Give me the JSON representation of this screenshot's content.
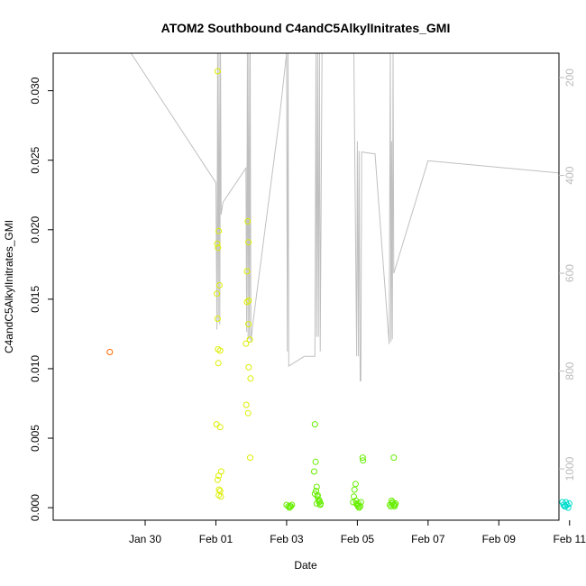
{
  "chart_data": {
    "type": "scatter",
    "title": "ATOM2 Southbound C4andC5AlkylInitrates_GMI",
    "xlabel": "Date",
    "ylabel": "C4andC5AlkylInitrates_GMI",
    "xlim": [
      -2.6,
      11.7
    ],
    "ylim": [
      -0.0009,
      0.0327
    ],
    "y2lim": [
      1105,
      150
    ],
    "x_ticks": [
      {
        "value": 0,
        "label": "Jan 30"
      },
      {
        "value": 2,
        "label": "Feb 01"
      },
      {
        "value": 4,
        "label": "Feb 03"
      },
      {
        "value": 6,
        "label": "Feb 05"
      },
      {
        "value": 8,
        "label": "Feb 07"
      },
      {
        "value": 10,
        "label": "Feb 09"
      },
      {
        "value": 12,
        "label": "Feb 11"
      }
    ],
    "y_ticks": [
      {
        "value": 0.0,
        "label": "0.000"
      },
      {
        "value": 0.005,
        "label": "0.005"
      },
      {
        "value": 0.01,
        "label": "0.010"
      },
      {
        "value": 0.015,
        "label": "0.015"
      },
      {
        "value": 0.02,
        "label": "0.020"
      },
      {
        "value": 0.025,
        "label": "0.025"
      },
      {
        "value": 0.03,
        "label": "0.030"
      }
    ],
    "y2_ticks": [
      {
        "value": 200,
        "label": "200"
      },
      {
        "value": 400,
        "label": "400"
      },
      {
        "value": 600,
        "label": "600"
      },
      {
        "value": 800,
        "label": "800"
      },
      {
        "value": 1000,
        "label": "1000"
      }
    ],
    "grid": false,
    "legend": "none",
    "colors": {
      "pressure_line": "#c0c0c0",
      "axis": "#000000",
      "right_axis": "#bbbbbb"
    },
    "series": [
      {
        "color": "#ff6600",
        "points": [
          [
            -1.0,
            0.0112
          ]
        ]
      },
      {
        "color": "#ddee00",
        "points": [
          [
            2.05,
            0.0314
          ],
          [
            2.04,
            0.019
          ],
          [
            2.06,
            0.0187
          ],
          [
            2.08,
            0.0199
          ],
          [
            2.03,
            0.0154
          ],
          [
            2.1,
            0.016
          ],
          [
            2.05,
            0.0136
          ],
          [
            2.06,
            0.0114
          ],
          [
            2.12,
            0.0113
          ],
          [
            2.07,
            0.0104
          ],
          [
            2.02,
            0.006
          ],
          [
            2.12,
            0.0058
          ],
          [
            2.15,
            0.0026
          ],
          [
            2.08,
            0.0023
          ],
          [
            2.05,
            0.002
          ],
          [
            2.09,
            0.0013
          ],
          [
            2.12,
            0.0012
          ],
          [
            2.08,
            0.0009
          ],
          [
            2.14,
            0.0008
          ],
          [
            2.9,
            0.0206
          ],
          [
            2.92,
            0.0191
          ],
          [
            2.88,
            0.017
          ],
          [
            2.93,
            0.0149
          ],
          [
            2.88,
            0.0148
          ],
          [
            2.92,
            0.0132
          ],
          [
            2.96,
            0.0121
          ],
          [
            2.85,
            0.0118
          ],
          [
            2.93,
            0.0101
          ],
          [
            2.98,
            0.0093
          ],
          [
            2.86,
            0.0074
          ],
          [
            2.91,
            0.0068
          ],
          [
            2.97,
            0.0036
          ]
        ]
      },
      {
        "color": "#66ee00",
        "points": [
          [
            4.0,
            0.0002
          ],
          [
            4.05,
            0.0001
          ],
          [
            4.1,
            0.0001
          ],
          [
            4.15,
            0.0002
          ],
          [
            4.08,
            0.0
          ],
          [
            4.12,
            0.0001
          ],
          [
            4.8,
            0.006
          ],
          [
            4.82,
            0.0033
          ],
          [
            4.78,
            0.0026
          ],
          [
            4.85,
            0.0015
          ],
          [
            4.83,
            0.0012
          ],
          [
            4.8,
            0.001
          ],
          [
            4.87,
            0.0008
          ],
          [
            4.9,
            0.0006
          ],
          [
            4.92,
            0.0004
          ],
          [
            4.85,
            0.0003
          ],
          [
            4.95,
            0.0002
          ],
          [
            4.93,
            0.0005
          ],
          [
            4.88,
            0.0009
          ],
          [
            4.96,
            0.0003
          ],
          [
            5.95,
            0.0017
          ],
          [
            5.92,
            0.0013
          ],
          [
            5.9,
            0.0008
          ],
          [
            5.88,
            0.0004
          ],
          [
            5.97,
            0.0003
          ],
          [
            6.0,
            0.0002
          ],
          [
            6.02,
            0.0001
          ],
          [
            6.05,
            0.0
          ],
          [
            6.08,
            0.0001
          ],
          [
            6.1,
            0.0004
          ],
          [
            6.15,
            0.0036
          ],
          [
            6.16,
            0.0034
          ],
          [
            5.96,
            0.0005
          ],
          [
            6.03,
            0.0003
          ],
          [
            6.92,
            0.0002
          ],
          [
            6.95,
            0.0001
          ],
          [
            6.98,
            0.0003
          ],
          [
            7.0,
            0.0004
          ],
          [
            7.02,
            0.0002
          ],
          [
            7.05,
            0.0001
          ],
          [
            7.08,
            0.0003
          ],
          [
            7.03,
            0.0036
          ],
          [
            6.97,
            0.0005
          ],
          [
            7.06,
            0.0002
          ]
        ]
      },
      {
        "color": "#00ddcc",
        "points": [
          [
            11.8,
            0.0004
          ],
          [
            11.83,
            0.0002
          ],
          [
            11.86,
            0.0001
          ],
          [
            11.9,
            0.0004
          ],
          [
            11.93,
            0.0002
          ],
          [
            11.96,
            0.0
          ],
          [
            11.88,
            0.0001
          ],
          [
            11.99,
            0.0003
          ]
        ]
      }
    ],
    "pressure_path": [
      [
        -2.3,
        150
      ],
      [
        -0.4,
        150
      ],
      [
        2.0,
        415
      ],
      [
        2.03,
        715
      ],
      [
        2.05,
        150
      ],
      [
        2.07,
        700
      ],
      [
        2.09,
        150
      ],
      [
        2.11,
        705
      ],
      [
        2.13,
        150
      ],
      [
        2.15,
        480
      ],
      [
        2.2,
        455
      ],
      [
        2.85,
        385
      ],
      [
        2.87,
        720
      ],
      [
        2.89,
        150
      ],
      [
        2.91,
        735
      ],
      [
        2.93,
        150
      ],
      [
        2.95,
        735
      ],
      [
        2.97,
        150
      ],
      [
        2.99,
        740
      ],
      [
        3.05,
        700
      ],
      [
        3.8,
        280
      ],
      [
        4.0,
        150
      ],
      [
        4.02,
        760
      ],
      [
        4.04,
        150
      ],
      [
        4.06,
        790
      ],
      [
        4.5,
        770
      ],
      [
        4.8,
        770
      ],
      [
        4.83,
        150
      ],
      [
        4.85,
        730
      ],
      [
        4.88,
        150
      ],
      [
        4.9,
        730
      ],
      [
        4.93,
        150
      ],
      [
        4.95,
        760
      ],
      [
        5.0,
        150
      ],
      [
        5.3,
        150
      ],
      [
        5.9,
        150
      ],
      [
        5.98,
        770
      ],
      [
        6.0,
        330
      ],
      [
        6.03,
        770
      ],
      [
        6.05,
        350
      ],
      [
        6.08,
        820
      ],
      [
        6.1,
        820
      ],
      [
        6.12,
        352
      ],
      [
        6.5,
        356
      ],
      [
        6.9,
        745
      ],
      [
        6.93,
        150
      ],
      [
        6.95,
        740
      ],
      [
        6.97,
        330
      ],
      [
        6.99,
        735
      ],
      [
        7.01,
        150
      ],
      [
        7.03,
        600
      ],
      [
        8.0,
        370
      ],
      [
        11.7,
        395
      ],
      [
        11.75,
        400
      ],
      [
        11.78,
        680
      ],
      [
        11.8,
        337
      ],
      [
        11.82,
        770
      ],
      [
        11.84,
        340
      ],
      [
        11.86,
        760
      ],
      [
        11.88,
        150
      ]
    ]
  }
}
